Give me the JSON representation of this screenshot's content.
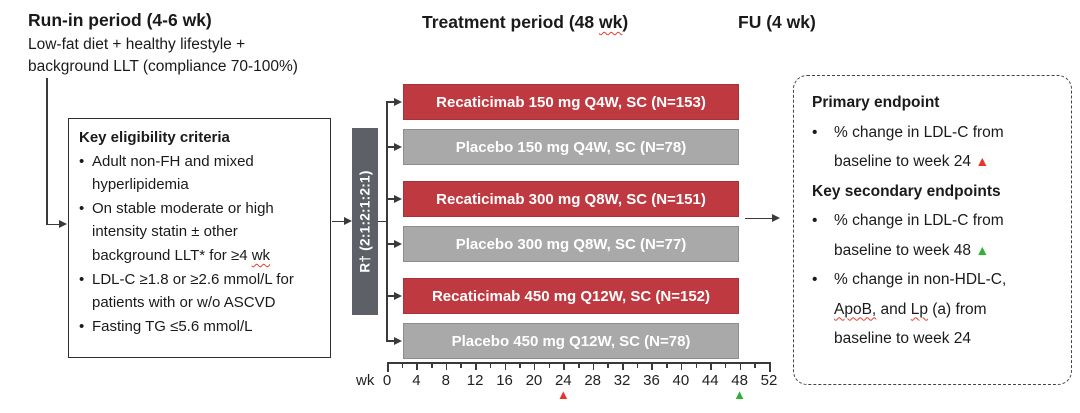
{
  "palette": {
    "red": "#bf3a40",
    "red_border": "#a93238",
    "gray": "#a9a9a9",
    "gray_border": "#8d8d8d",
    "dark": "#5d6167",
    "line": "#3a3a3a",
    "marker_red": "#e8342a",
    "marker_green": "#2eb135"
  },
  "headers": {
    "runin_title": "Run-in period (4-6 wk)",
    "runin_sub_line1": "Low-fat diet + healthy lifestyle +",
    "runin_sub_line2": "background LLT (compliance 70-100%)",
    "treatment_title_pre": "Treatment period (48 ",
    "treatment_title_wk": "wk",
    "treatment_title_post": ")",
    "fu_title": "FU (4 wk)"
  },
  "eligibility": {
    "title": "Key eligibility criteria",
    "bullet_glyph": "•",
    "items": [
      {
        "text": "Adult non-FH and mixed hyperlipidemia"
      },
      {
        "pre": "On stable moderate or high intensity statin ± other background LLT* for ≥4 ",
        "squiggle": "wk"
      },
      {
        "text": "LDL-C ≥1.8 or ≥2.6 mmol/L for patients with or w/o ASCVD"
      },
      {
        "text": "Fasting TG ≤5.6 mmol/L"
      }
    ]
  },
  "randomization": {
    "label": "R† (2:1:2:1:2:1)"
  },
  "arms": [
    {
      "label": "Recaticimab 150 mg Q4W, SC (N=153)",
      "type": "recaticimab"
    },
    {
      "label": "Placebo 150 mg Q4W, SC (N=78)",
      "type": "placebo"
    },
    {
      "label": "Recaticimab 300 mg Q8W, SC (N=151)",
      "type": "recaticimab"
    },
    {
      "label": "Placebo 300 mg Q8W, SC (N=77)",
      "type": "placebo"
    },
    {
      "label": "Recaticimab 450 mg Q12W, SC (N=152)",
      "type": "recaticimab"
    },
    {
      "label": "Placebo 450 mg Q12W, SC (N=78)",
      "type": "placebo"
    }
  ],
  "axis": {
    "unit_label": "wk",
    "tick_labels": [
      "0",
      "4",
      "8",
      "12",
      "16",
      "20",
      "24",
      "28",
      "32",
      "36",
      "40",
      "44",
      "48",
      "52"
    ],
    "weeks_per_tick": 4,
    "markers": [
      {
        "week": 24,
        "glyph": "▲",
        "color": "#e8342a"
      },
      {
        "week": 48,
        "glyph": "▲",
        "color": "#2eb135"
      }
    ]
  },
  "endpoints": {
    "bullet_glyph": "•",
    "primary_title": "Primary endpoint",
    "primary_item": {
      "line": "% change in LDL-C from baseline to week 24 ",
      "glyph": "▲",
      "glyph_color": "#e8342a"
    },
    "secondary_title": "Key secondary endpoints",
    "secondary_item1": {
      "line": "% change in LDL-C from baseline to week 48 ",
      "glyph": "▲",
      "glyph_color": "#2eb135"
    },
    "secondary_item2": {
      "pre": "% change in non-HDL-C, ",
      "squiggle1": "ApoB,",
      "mid": " and ",
      "squiggle2": "Lp",
      "post": " (a) from baseline to week 24"
    }
  }
}
